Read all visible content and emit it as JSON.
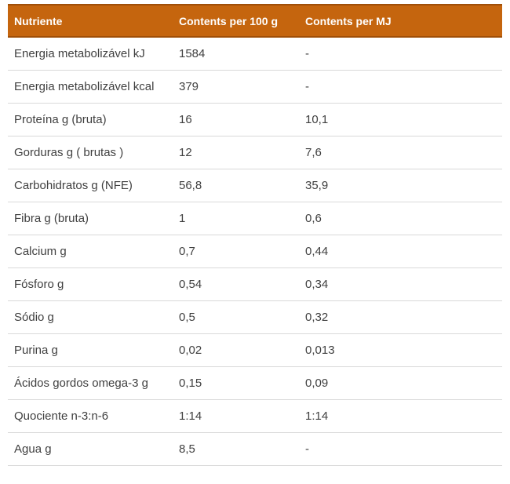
{
  "table": {
    "columns": [
      {
        "label": "Nutriente"
      },
      {
        "label": "Contents per 100 g"
      },
      {
        "label": "Contents per MJ"
      }
    ],
    "rows": [
      {
        "nutrient": "Energia metabolizável kJ",
        "per_100g": "1584",
        "per_mj": "-"
      },
      {
        "nutrient": "Energia metabolizável kcal",
        "per_100g": "379",
        "per_mj": "-"
      },
      {
        "nutrient": "Proteína g (bruta)",
        "per_100g": "16",
        "per_mj": "10,1"
      },
      {
        "nutrient": "Gorduras g ( brutas )",
        "per_100g": "12",
        "per_mj": "7,6"
      },
      {
        "nutrient": "Carbohidratos g (NFE)",
        "per_100g": "56,8",
        "per_mj": "35,9"
      },
      {
        "nutrient": "Fibra g (bruta)",
        "per_100g": "1",
        "per_mj": "0,6"
      },
      {
        "nutrient": "Calcium g",
        "per_100g": "0,7",
        "per_mj": "0,44"
      },
      {
        "nutrient": "Fósforo g",
        "per_100g": "0,54",
        "per_mj": "0,34"
      },
      {
        "nutrient": "Sódio g",
        "per_100g": "0,5",
        "per_mj": "0,32"
      },
      {
        "nutrient": "Purina g",
        "per_100g": "0,02",
        "per_mj": "0,013"
      },
      {
        "nutrient": "Ácidos gordos omega-3 g",
        "per_100g": "0,15",
        "per_mj": "0,09"
      },
      {
        "nutrient": "Quociente n-3:n-6",
        "per_100g": "1:14",
        "per_mj": "1:14"
      },
      {
        "nutrient": "Agua g",
        "per_100g": "8,5",
        "per_mj": "-"
      }
    ],
    "colors": {
      "header_bg": "#c5650e",
      "header_border": "#a04f08",
      "header_text": "#ffffff",
      "row_text": "#404040",
      "row_divider": "#d9d9d9"
    }
  }
}
